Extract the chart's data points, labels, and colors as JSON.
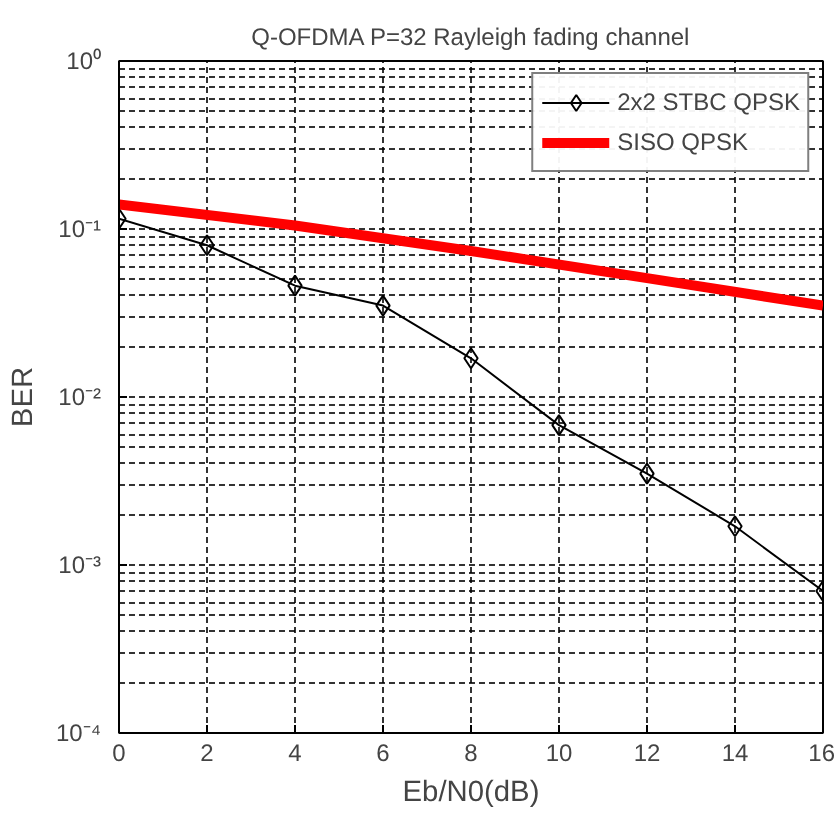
{
  "chart_data": {
    "type": "line",
    "title": "Q-OFDMA P=32 Rayleigh fading channel",
    "xlabel": "Eb/N0(dB)",
    "ylabel": "BER",
    "log": "y",
    "grid": true,
    "legend": "top right",
    "line_style": "solid",
    "xlim": [
      0,
      16
    ],
    "xticks": [
      0,
      2,
      4,
      6,
      8,
      10,
      12,
      14,
      16
    ],
    "ylim": [
      0.0001,
      1
    ],
    "yticks": [
      {
        "value": 0.0001,
        "label": "10⁻⁴"
      },
      {
        "value": 0.001,
        "label": "10⁻³"
      },
      {
        "value": 0.01,
        "label": "10⁻²"
      },
      {
        "value": 0.1,
        "label": "10⁻¹"
      },
      {
        "value": 1,
        "label": "10⁰"
      }
    ],
    "x": [
      0,
      2,
      4,
      6,
      8,
      10,
      12,
      14,
      16
    ],
    "series": [
      {
        "name": "2x2 STBC QPSK",
        "color": "#000000",
        "marker": "diamond",
        "values": [
          0.115,
          0.08,
          0.046,
          0.035,
          0.017,
          0.0068,
          0.0035,
          0.0017,
          0.0007
        ]
      },
      {
        "name": "SISO QPSK",
        "color": "#ff0000",
        "marker": "none",
        "x": [
          0,
          4,
          8,
          12,
          16
        ],
        "values": [
          0.14,
          0.105,
          0.074,
          0.051,
          0.035
        ]
      }
    ]
  }
}
